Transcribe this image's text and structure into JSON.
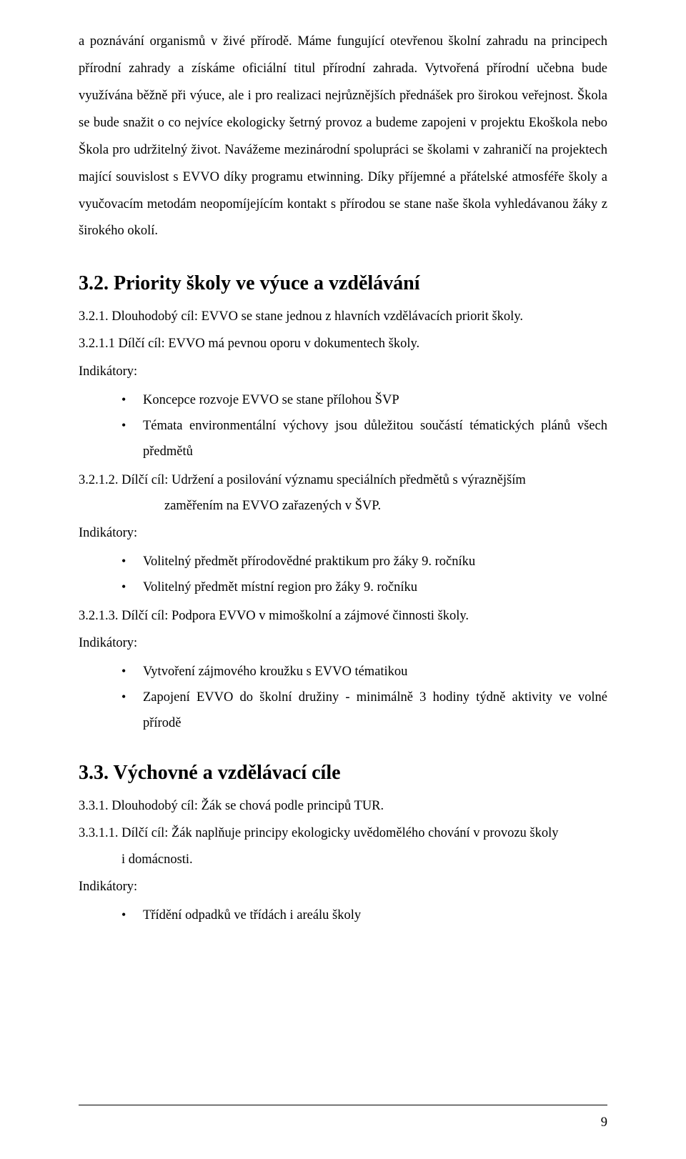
{
  "intro": {
    "paragraph": "a poznávání organismů v živé přírodě. Máme fungující otevřenou školní zahradu na principech přírodní zahrady a získáme oficiální titul přírodní zahrada. Vytvořená přírodní učebna bude využívána běžně při výuce, ale i pro realizaci nejrůznějších přednášek pro širokou veřejnost. Škola se bude snažit o co nejvíce ekologicky šetrný provoz a budeme zapojeni v projektu Ekoškola nebo Škola pro udržitelný život. Navážeme mezinárodní spolupráci se školami v zahraničí na projektech mající souvislost s EVVO díky programu etwinning. Díky příjemné a přátelské atmosféře školy a vyučovacím metodám neopomíjejícím kontakt s přírodou se stane naše škola vyhledávanou žáky z širokého okolí."
  },
  "section32": {
    "heading": "3.2. Priority školy ve výuce a vzdělávání",
    "item_3_2_1": "3.2.1. Dlouhodobý cíl: EVVO se stane jednou z hlavních vzdělávacích priorit školy.",
    "item_3_2_1_1": "3.2.1.1 Dílčí cíl: EVVO má pevnou oporu v dokumentech školy.",
    "indicators_label": "Indikátory:",
    "bullets_3_2_1_1": [
      "Koncepce rozvoje EVVO se stane přílohou ŠVP",
      "Témata environmentální výchovy jsou důležitou součástí tématických plánů všech předmětů"
    ],
    "item_3_2_1_2": "3.2.1.2. Dílčí cíl: Udržení a posilování významu speciálních předmětů s výraznějším",
    "item_3_2_1_2_cont": "zaměřením na EVVO zařazených v ŠVP.",
    "bullets_3_2_1_2": [
      "Volitelný předmět přírodovědné praktikum pro žáky 9. ročníku",
      "Volitelný předmět místní region pro žáky 9. ročníku"
    ],
    "item_3_2_1_3": "3.2.1.3. Dílčí cíl: Podpora EVVO v mimoškolní a zájmové činnosti školy.",
    "bullets_3_2_1_3": [
      "Vytvoření zájmového kroužku s EVVO tématikou",
      "Zapojení EVVO do školní družiny  - minimálně 3 hodiny týdně aktivity ve volné přírodě"
    ]
  },
  "section33": {
    "heading": "3.3. Výchovné a vzdělávací cíle",
    "item_3_3_1": "3.3.1. Dlouhodobý cíl: Žák se chová podle principů TUR.",
    "item_3_3_1_1": "3.3.1.1. Dílčí cíl: Žák naplňuje principy ekologicky uvědomělého chování v provozu školy",
    "item_3_3_1_1_cont": "i domácnosti.",
    "indicators_label": "Indikátory:",
    "bullets_3_3_1_1": [
      "Třídění odpadků ve třídách i areálu školy"
    ]
  },
  "page_number": "9"
}
